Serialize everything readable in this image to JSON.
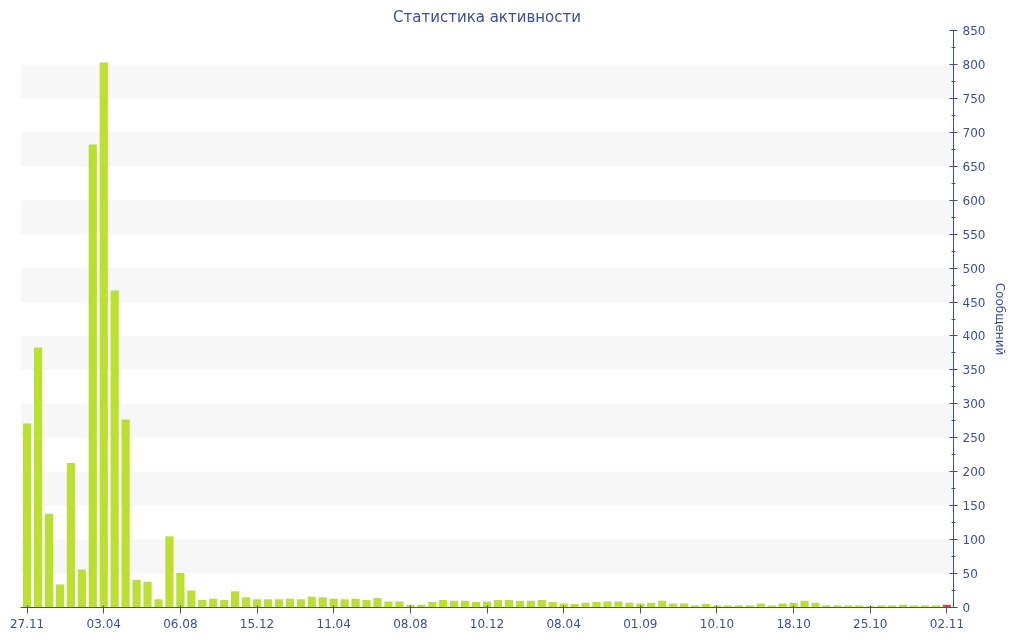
{
  "chart_data": {
    "type": "bar",
    "title": "Статистика активности",
    "ylabel": "Сообщений",
    "categories": [
      "27.11",
      null,
      null,
      null,
      null,
      null,
      null,
      "03.04",
      null,
      null,
      null,
      null,
      null,
      null,
      "06.08",
      null,
      null,
      null,
      null,
      null,
      null,
      "15.12",
      null,
      null,
      null,
      null,
      null,
      null,
      "11.04",
      null,
      null,
      null,
      null,
      null,
      null,
      "08.08",
      null,
      null,
      null,
      null,
      null,
      null,
      "10.12",
      null,
      null,
      null,
      null,
      null,
      null,
      "08.04",
      null,
      null,
      null,
      null,
      null,
      null,
      "01.09",
      null,
      null,
      null,
      null,
      null,
      null,
      "10.10",
      null,
      null,
      null,
      null,
      null,
      null,
      "18.10",
      null,
      null,
      null,
      null,
      null,
      null,
      "25.10",
      null,
      null,
      null,
      null,
      null,
      null,
      "02.11"
    ],
    "values": [
      271,
      383,
      138,
      34,
      213,
      56,
      682,
      803,
      467,
      277,
      41,
      38,
      12,
      105,
      51,
      25,
      11,
      13,
      11,
      24,
      15,
      12,
      12,
      12,
      13,
      12,
      16,
      15,
      13,
      12,
      13,
      11,
      14,
      9,
      9,
      4,
      4,
      8,
      11,
      10,
      10,
      8,
      9,
      11,
      11,
      10,
      10,
      11,
      8,
      6,
      5,
      7,
      8,
      9,
      9,
      7,
      6,
      7,
      10,
      6,
      6,
      3,
      5,
      3,
      3,
      3,
      3,
      6,
      3,
      6,
      7,
      10,
      7,
      3,
      3,
      3,
      3,
      2,
      3,
      3,
      4,
      3,
      3,
      3,
      4
    ],
    "colors": [
      "#bbe031",
      "#bbe031",
      "#bbe031",
      "#bbe031",
      "#bbe031",
      "#bbe031",
      "#bbe031",
      "#bbe031",
      "#bbe031",
      "#bbe031",
      "#bbe031",
      "#bbe031",
      "#bbe031",
      "#bbe031",
      "#bbe031",
      "#bbe031",
      "#bbe031",
      "#bbe031",
      "#bbe031",
      "#bbe031",
      "#bbe031",
      "#bbe031",
      "#bbe031",
      "#bbe031",
      "#bbe031",
      "#bbe031",
      "#bbe031",
      "#bbe031",
      "#bbe031",
      "#bbe031",
      "#bbe031",
      "#bbe031",
      "#bbe031",
      "#bbe031",
      "#bbe031",
      "#bbe031",
      "#bbe031",
      "#bbe031",
      "#bbe031",
      "#bbe031",
      "#bbe031",
      "#bbe031",
      "#bbe031",
      "#bbe031",
      "#bbe031",
      "#bbe031",
      "#bbe031",
      "#bbe031",
      "#bbe031",
      "#bbe031",
      "#bbe031",
      "#bbe031",
      "#bbe031",
      "#bbe031",
      "#bbe031",
      "#bbe031",
      "#bbe031",
      "#bbe031",
      "#bbe031",
      "#bbe031",
      "#bbe031",
      "#bbe031",
      "#bbe031",
      "#bbe031",
      "#bbe031",
      "#bbe031",
      "#bbe031",
      "#bbe031",
      "#bbe031",
      "#bbe031",
      "#bbe031",
      "#bbe031",
      "#bbe031",
      "#bbe031",
      "#bbe031",
      "#bbe031",
      "#bbe031",
      "#bbe031",
      "#bbe031",
      "#bbe031",
      "#bbe031",
      "#bbe031",
      "#bbe031",
      "#bbe031",
      "#e8502a"
    ],
    "ylim": [
      0,
      850
    ],
    "yticks": [
      0,
      50,
      100,
      150,
      200,
      250,
      300,
      350,
      400,
      450,
      500,
      550,
      600,
      650,
      700,
      750,
      800,
      850
    ],
    "bands": [
      {
        "axis": "y",
        "from": 50,
        "to": 100,
        "color": "#f7f7f7"
      },
      {
        "axis": "y",
        "from": 150,
        "to": 200,
        "color": "#f7f7f7"
      },
      {
        "axis": "y",
        "from": 250,
        "to": 300,
        "color": "#f7f7f7"
      },
      {
        "axis": "y",
        "from": 350,
        "to": 400,
        "color": "#f7f7f7"
      },
      {
        "axis": "y",
        "from": 450,
        "to": 500,
        "color": "#f7f7f7"
      },
      {
        "axis": "y",
        "from": 550,
        "to": 600,
        "color": "#f7f7f7"
      },
      {
        "axis": "y",
        "from": 650,
        "to": 700,
        "color": "#f7f7f7"
      },
      {
        "axis": "y",
        "from": 750,
        "to": 800,
        "color": "#f7f7f7"
      }
    ]
  }
}
